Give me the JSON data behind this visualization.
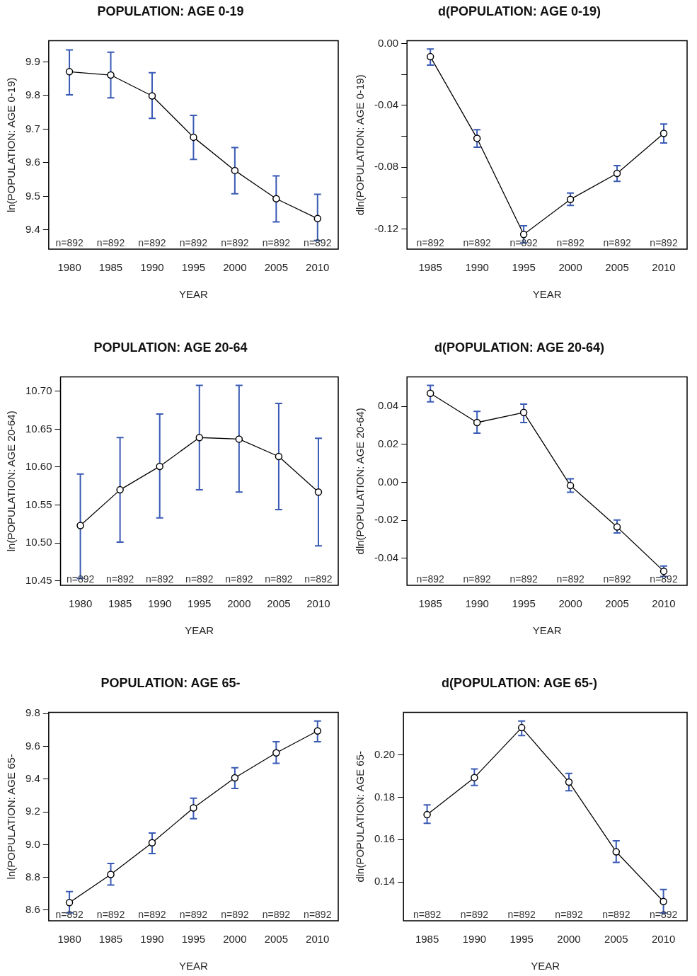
{
  "chart_data": [
    {
      "type": "line",
      "title": "POPULATION: AGE 0-19",
      "xlabel": "YEAR",
      "ylabel": "ln(POPULATION: AGE 0-19)",
      "categories": [
        "1980",
        "1985",
        "1990",
        "1995",
        "2000",
        "2005",
        "2010"
      ],
      "marker": "circle",
      "grid": false,
      "legend": false,
      "ylim": [
        9.343,
        9.963
      ],
      "yticks": [
        9.4,
        9.5,
        9.6,
        9.7,
        9.8,
        9.9
      ],
      "series": [
        {
          "color": "#000000",
          "values": [
            9.871,
            9.861,
            9.799,
            9.676,
            9.577,
            9.493,
            9.434
          ],
          "errors": [
            [
              9.802,
              9.936
            ],
            [
              9.793,
              9.929
            ],
            [
              9.732,
              9.868
            ],
            [
              9.61,
              9.741
            ],
            [
              9.508,
              9.645
            ],
            [
              9.424,
              9.561
            ],
            [
              9.369,
              9.506
            ]
          ]
        }
      ],
      "annotations": [
        "n=892",
        "n=892",
        "n=892",
        "n=892",
        "n=892",
        "n=892",
        "n=892"
      ]
    },
    {
      "type": "line",
      "title": "d(POPULATION: AGE 0-19)",
      "xlabel": "YEAR",
      "ylabel": "dln(POPULATION: AGE 0-19)",
      "categories": [
        "1985",
        "1990",
        "1995",
        "2000",
        "2005",
        "2010"
      ],
      "marker": "circle",
      "grid": false,
      "legend": false,
      "ylim": [
        -0.133,
        0.0018
      ],
      "yticks": [
        {
          "value": -0.12,
          "label": "-0.12"
        },
        {
          "value": -0.1,
          "label": null
        },
        {
          "value": -0.08,
          "label": "-0.08"
        },
        {
          "value": -0.06,
          "label": null
        },
        {
          "value": -0.04,
          "label": "-0.04"
        },
        {
          "value": -0.02,
          "label": null
        },
        {
          "value": 0,
          "label": "0.00"
        }
      ],
      "series": [
        {
          "color": "#000000",
          "values": [
            -0.0085,
            -0.0613,
            -0.1235,
            -0.1008,
            -0.084,
            -0.0581
          ],
          "errors": [
            [
              -0.014,
              -0.0035
            ],
            [
              -0.0671,
              -0.0557
            ],
            [
              -0.129,
              -0.1179
            ],
            [
              -0.1047,
              -0.0967
            ],
            [
              -0.0892,
              -0.079
            ],
            [
              -0.0643,
              -0.0521
            ]
          ]
        }
      ],
      "annotations": [
        "n=892",
        "n=892",
        "n=892",
        "n=892",
        "n=892",
        "n=892"
      ]
    },
    {
      "type": "line",
      "title": "POPULATION: AGE 20-64",
      "xlabel": "YEAR",
      "ylabel": "ln(POPULATION: AGE 20-64)",
      "categories": [
        "1980",
        "1985",
        "1990",
        "1995",
        "2000",
        "2005",
        "2010"
      ],
      "marker": "circle",
      "grid": false,
      "legend": false,
      "ylim": [
        10.444,
        10.719
      ],
      "yticks": [
        10.45,
        {
          "value": 10.5,
          "label": "10.50"
        },
        10.55,
        {
          "value": 10.6,
          "label": "10.60"
        },
        10.65,
        {
          "value": 10.7,
          "label": "10.70"
        }
      ],
      "series": [
        {
          "color": "#000000",
          "values": [
            10.523,
            10.57,
            10.601,
            10.639,
            10.637,
            10.614,
            10.567
          ],
          "errors": [
            [
              10.453,
              10.591
            ],
            [
              10.501,
              10.639
            ],
            [
              10.533,
              10.67
            ],
            [
              10.57,
              10.708
            ],
            [
              10.567,
              10.708
            ],
            [
              10.544,
              10.684
            ],
            [
              10.496,
              10.638
            ]
          ]
        }
      ],
      "annotations": [
        "n=892",
        "n=892",
        "n=892",
        "n=892",
        "n=892",
        "n=892",
        "n=892"
      ]
    },
    {
      "type": "line",
      "title": "d(POPULATION: AGE 20-64)",
      "xlabel": "YEAR",
      "ylabel": "dln(POPULATION: AGE 20-64)",
      "categories": [
        "1985",
        "1990",
        "1995",
        "2000",
        "2005",
        "2010"
      ],
      "marker": "circle",
      "grid": false,
      "legend": false,
      "ylim": [
        -0.0542,
        0.0555
      ],
      "yticks": [
        -0.04,
        -0.02,
        {
          "value": 0,
          "label": "0.00"
        },
        0.02,
        0.04
      ],
      "series": [
        {
          "color": "#000000",
          "values": [
            0.0469,
            0.0315,
            0.0368,
            -0.0017,
            -0.0235,
            -0.0468
          ],
          "errors": [
            [
              0.0424,
              0.0511
            ],
            [
              0.0259,
              0.0374
            ],
            [
              0.0315,
              0.0412
            ],
            [
              -0.0052,
              0.0019
            ],
            [
              -0.0266,
              -0.0198
            ],
            [
              -0.0495,
              -0.044
            ]
          ]
        }
      ],
      "annotations": [
        "n=892",
        "n=892",
        "n=892",
        "n=892",
        "n=892",
        "n=892"
      ]
    },
    {
      "type": "line",
      "title": "POPULATION: AGE 65-",
      "xlabel": "YEAR",
      "ylabel": "ln(POPULATION: AGE 65-",
      "categories": [
        "1980",
        "1985",
        "1990",
        "1995",
        "2000",
        "2005",
        "2010"
      ],
      "marker": "circle",
      "grid": false,
      "legend": false,
      "ylim": [
        8.535,
        9.807
      ],
      "yticks": [
        8.6,
        8.8,
        {
          "value": 9,
          "label": "9.0"
        },
        9.2,
        9.4,
        9.6,
        9.8
      ],
      "series": [
        {
          "color": "#000000",
          "values": [
            8.646,
            8.818,
            9.011,
            9.224,
            9.408,
            9.56,
            9.694
          ],
          "errors": [
            [
              8.584,
              8.713
            ],
            [
              8.753,
              8.885
            ],
            [
              8.945,
              9.071
            ],
            [
              9.158,
              9.284
            ],
            [
              9.343,
              9.469
            ],
            [
              9.496,
              9.628
            ],
            [
              9.628,
              9.754
            ]
          ]
        }
      ],
      "annotations": [
        "n=892",
        "n=892",
        "n=892",
        "n=892",
        "n=892",
        "n=892",
        "n=892"
      ]
    },
    {
      "type": "line",
      "title": "d(POPULATION: AGE 65-)",
      "xlabel": "YEAR",
      "ylabel": "dln(POPULATION: AGE 65-",
      "categories": [
        "1985",
        "1990",
        "1995",
        "2000",
        "2005",
        "2010"
      ],
      "marker": "circle",
      "grid": false,
      "legend": false,
      "ylim": [
        0.1216,
        0.2201
      ],
      "yticks": [
        0.14,
        0.16,
        0.18,
        {
          "value": 0.2,
          "label": "0.20"
        }
      ],
      "series": [
        {
          "color": "#000000",
          "values": [
            0.1718,
            0.1893,
            0.2129,
            0.1872,
            0.1542,
            0.1307
          ],
          "errors": [
            [
              0.1677,
              0.1764
            ],
            [
              0.1856,
              0.1934
            ],
            [
              0.2092,
              0.216
            ],
            [
              0.1831,
              0.1913
            ],
            [
              0.1492,
              0.1594
            ],
            [
              0.1253,
              0.1364
            ]
          ]
        }
      ],
      "annotations": [
        "n=892",
        "n=892",
        "n=892",
        "n=892",
        "n=892",
        "n=892"
      ]
    }
  ]
}
